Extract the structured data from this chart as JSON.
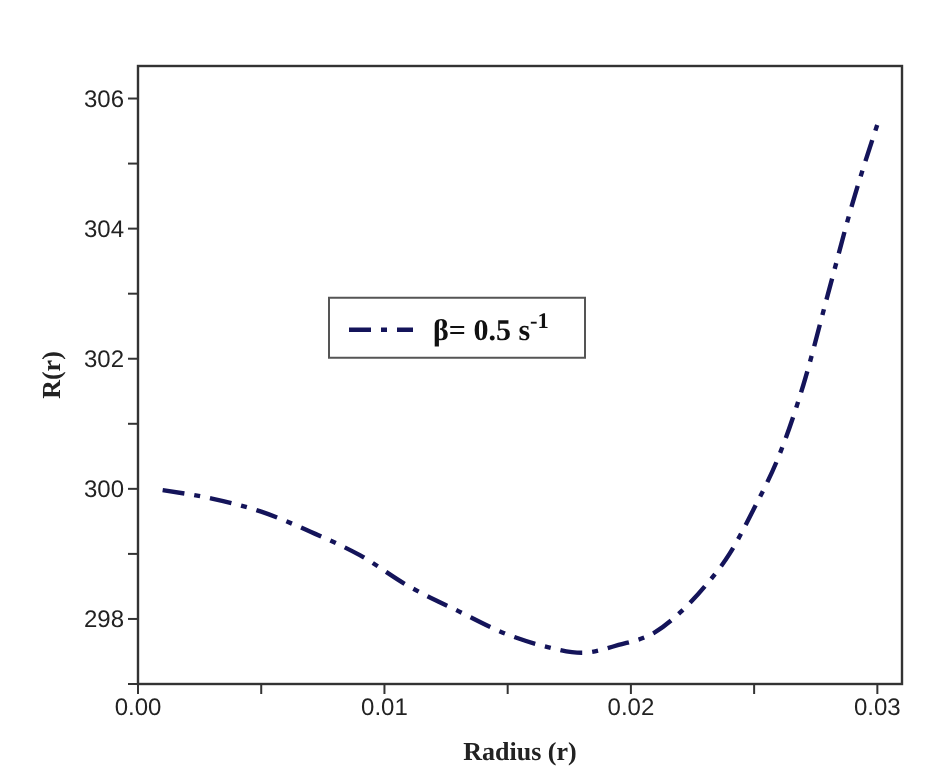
{
  "chart_data": {
    "type": "line",
    "xlabel": "Radius (r)",
    "ylabel": "R(r)",
    "x": [
      0.001,
      0.003,
      0.005,
      0.007,
      0.009,
      0.011,
      0.013,
      0.015,
      0.0165,
      0.018,
      0.0195,
      0.021,
      0.022,
      0.023,
      0.024,
      0.025,
      0.026,
      0.027,
      0.028,
      0.029,
      0.03
    ],
    "series": [
      {
        "name": "β= 0.5 s$^{-1}$",
        "color": "#14145a",
        "values": [
          299.98,
          299.85,
          299.65,
          299.34,
          298.98,
          298.5,
          298.12,
          297.76,
          297.58,
          297.48,
          297.6,
          297.8,
          298.1,
          298.5,
          299.0,
          299.7,
          300.5,
          301.6,
          303.0,
          304.4,
          305.6
        ]
      }
    ],
    "xlim": [
      0,
      0.031
    ],
    "ylim": [
      297,
      306.5
    ],
    "xticks": [
      {
        "value": 0,
        "label": "0.00"
      },
      {
        "value": 0.005,
        "label": null
      },
      {
        "value": 0.01,
        "label": "0.01"
      },
      {
        "value": 0.015,
        "label": null
      },
      {
        "value": 0.02,
        "label": "0.02"
      },
      {
        "value": 0.025,
        "label": null
      },
      {
        "value": 0.03,
        "label": "0.03"
      }
    ],
    "yticks": [
      {
        "value": 297,
        "label": null
      },
      298,
      {
        "value": 299,
        "label": null
      },
      300,
      {
        "value": 301,
        "label": null
      },
      302,
      {
        "value": 303,
        "label": null
      },
      304,
      {
        "value": 305,
        "label": null
      },
      306
    ],
    "legend": "top left",
    "line_style": "dashed",
    "marker": "none",
    "grid": false
  }
}
